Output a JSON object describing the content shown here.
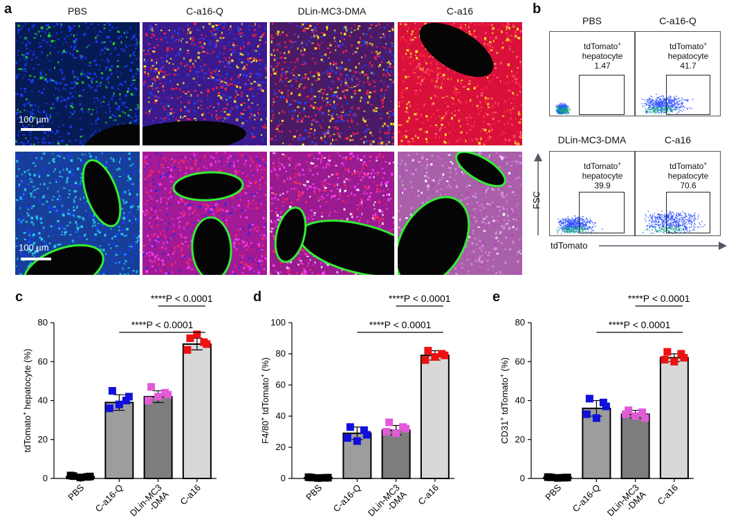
{
  "panel_a": {
    "letter": "a",
    "titles": [
      "PBS",
      "C-a16-Q",
      "DLin-MC3-DMA",
      "C-a16"
    ],
    "scale_label": "100 µm"
  },
  "panel_b": {
    "letter": "b",
    "plots": [
      {
        "title": "PBS",
        "gate_label": "tdTomato",
        "gate_sup": "+",
        "gate_sub": "hepatocyte",
        "value": "1.47"
      },
      {
        "title": "C-a16-Q",
        "gate_label": "tdTomato",
        "gate_sup": "+",
        "gate_sub": "hepatocyte",
        "value": "41.7"
      },
      {
        "title": "DLin-MC3-DMA",
        "gate_label": "tdTomato",
        "gate_sup": "+",
        "gate_sub": "hepatocyte",
        "value": "39.9"
      },
      {
        "title": "C-a16",
        "gate_label": "tdTomato",
        "gate_sup": "+",
        "gate_sub": "hepatocyte",
        "value": "70.6"
      }
    ],
    "ylabel": "FSC",
    "xlabel": "tdTomato"
  },
  "chart_data": [
    {
      "letter": "c",
      "type": "bar",
      "categories": [
        "PBS",
        "C-a16-Q",
        "DLin-MC3\n-DMA",
        "C-a16"
      ],
      "values": [
        1,
        39,
        42,
        69
      ],
      "errors": [
        0.6,
        4,
        3,
        3
      ],
      "points": [
        [
          1.2,
          0.8,
          1.5,
          0.5,
          1.0
        ],
        [
          45,
          40,
          36,
          38,
          42
        ],
        [
          47,
          44,
          40,
          42,
          43
        ],
        [
          72,
          70,
          66,
          74,
          69
        ]
      ],
      "colors": [
        "#000000",
        "#1010dd",
        "#e35ad6",
        "#ee1111"
      ],
      "bar_colors": [
        "#777777",
        "#9d9d9d",
        "#7d7d7d",
        "#d8d8d8"
      ],
      "ylabel_main": "tdTomato",
      "ylabel_sup": "+",
      "ylabel_tail": " hepatocyte (%)",
      "ylim": [
        0,
        80
      ],
      "yticks": [
        0,
        20,
        40,
        60,
        80
      ],
      "sig": [
        {
          "from": 3,
          "to": 4,
          "label": "****P < 0.0001"
        },
        {
          "from": 2,
          "to": 4,
          "label": "****P < 0.0001"
        }
      ]
    },
    {
      "letter": "d",
      "type": "bar",
      "categories": [
        "PBS",
        "C-a16-Q",
        "DLin-MC3\n-DMA",
        "C-a16"
      ],
      "values": [
        0.5,
        29,
        31,
        79
      ],
      "errors": [
        0.3,
        4,
        3,
        3
      ],
      "points": [
        [
          0.6,
          0.4,
          0.8,
          0.3,
          0.5
        ],
        [
          33,
          31,
          26,
          24,
          28
        ],
        [
          36,
          33,
          30,
          29,
          32
        ],
        [
          82,
          80,
          76,
          78,
          79
        ]
      ],
      "colors": [
        "#000000",
        "#1010dd",
        "#e35ad6",
        "#ee1111"
      ],
      "bar_colors": [
        "#777777",
        "#9d9d9d",
        "#7d7d7d",
        "#d8d8d8"
      ],
      "ylabel_main": "F4/80",
      "ylabel_sup": "+",
      "ylabel_tail": " tdTomato",
      "ylabel_sup2": "+",
      "ylabel_tail2": " (%)",
      "ylim": [
        0,
        100
      ],
      "yticks": [
        0,
        20,
        40,
        60,
        80,
        100
      ],
      "sig": [
        {
          "from": 3,
          "to": 4,
          "label": "****P < 0.0001"
        },
        {
          "from": 2,
          "to": 4,
          "label": "****P < 0.0001"
        }
      ]
    },
    {
      "letter": "e",
      "type": "bar",
      "categories": [
        "PBS",
        "C-a16-Q",
        "DLin-MC3\n-DMA",
        "C-a16"
      ],
      "values": [
        0.5,
        36,
        33,
        62
      ],
      "errors": [
        0.3,
        4,
        2,
        2
      ],
      "points": [
        [
          0.6,
          0.4,
          0.7,
          0.3,
          0.5
        ],
        [
          41,
          39,
          33,
          31,
          37
        ],
        [
          35,
          34,
          33,
          32,
          31
        ],
        [
          65,
          64,
          61,
          60,
          62
        ]
      ],
      "colors": [
        "#000000",
        "#1010dd",
        "#e35ad6",
        "#ee1111"
      ],
      "bar_colors": [
        "#777777",
        "#9d9d9d",
        "#7d7d7d",
        "#d8d8d8"
      ],
      "ylabel_main": "CD31",
      "ylabel_sup": "+",
      "ylabel_tail": " tdTomato",
      "ylabel_sup2": "+",
      "ylabel_tail2": " (%)",
      "ylim": [
        0,
        80
      ],
      "yticks": [
        0,
        20,
        40,
        60,
        80
      ],
      "sig": [
        {
          "from": 3,
          "to": 4,
          "label": "****P < 0.0001"
        },
        {
          "from": 2,
          "to": 4,
          "label": "****P < 0.0001"
        }
      ]
    }
  ]
}
